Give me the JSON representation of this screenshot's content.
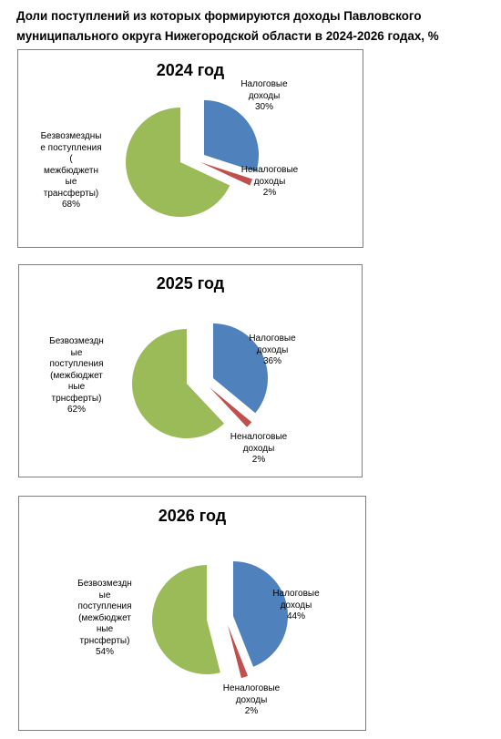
{
  "page": {
    "title_lines": [
      "Доли поступлений  из которых формируются доходы  Павловского",
      "муниципального округа Нижегородской области   в 2024-2026 годах, %"
    ]
  },
  "colors": {
    "tax": "#4f81bd",
    "nontax": "#c0504d",
    "grants": "#9bbb59"
  },
  "chart_data": [
    {
      "type": "pie",
      "title": "2024 год",
      "categories": [
        "Налоговые доходы",
        "Неналоговые доходы",
        "Безвозмездные поступления (межбюджетные трансферты)"
      ],
      "values": [
        30,
        2,
        68
      ],
      "labels": [
        {
          "lines": [
            "Налоговые",
            "доходы"
          ],
          "value": "30%"
        },
        {
          "lines": [
            "Неналоговые",
            "доходы"
          ],
          "value": "2%"
        },
        {
          "lines": [
            "Безвозмездны",
            "е поступления",
            "(",
            "межбюджетн",
            "ые",
            "трансферты)"
          ],
          "value": "68%"
        }
      ]
    },
    {
      "type": "pie",
      "title": "2025 год",
      "categories": [
        "Налоговые доходы",
        "Неналоговые доходы",
        "Безвозмездные поступления (межбюджетные трнсферты)"
      ],
      "values": [
        36,
        2,
        62
      ],
      "labels": [
        {
          "lines": [
            "Налоговые",
            "доходы"
          ],
          "value": "36%"
        },
        {
          "lines": [
            "Неналоговые",
            "доходы"
          ],
          "value": "2%"
        },
        {
          "lines": [
            "Безвозмездн",
            "ые",
            "поступления",
            "(межбюджет",
            "ные",
            "трнсферты)"
          ],
          "value": "62%"
        }
      ]
    },
    {
      "type": "pie",
      "title": "2026 год",
      "categories": [
        "Налоговые доходы",
        "Неналоговые доходы",
        "Безвозмездные поступления (межбюджетные трнсферты)"
      ],
      "values": [
        44,
        2,
        54
      ],
      "labels": [
        {
          "lines": [
            "Налоговые",
            "доходы"
          ],
          "value": "44%"
        },
        {
          "lines": [
            "Неналоговые",
            "доходы"
          ],
          "value": "2%"
        },
        {
          "lines": [
            "Безвозмездн",
            "ые",
            "поступления",
            "(межбюджет",
            "ные",
            "трнсферты)"
          ],
          "value": "54%"
        }
      ]
    }
  ]
}
